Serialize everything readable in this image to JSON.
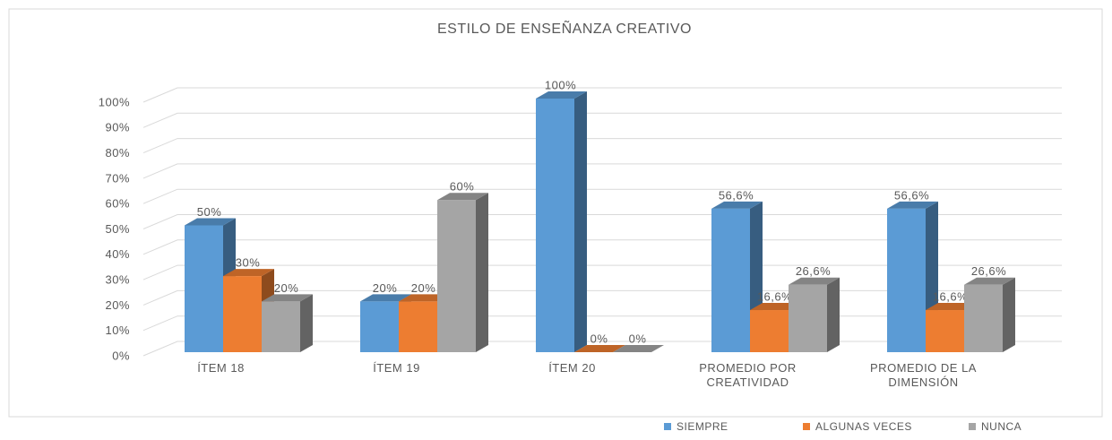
{
  "chart_data": {
    "type": "bar3d",
    "title": "ESTILO DE ENSEÑANZA CREATIVO",
    "categories": [
      "ÍTEM 18",
      "ÍTEM 19",
      "ÍTEM 20",
      "PROMEDIO POR CREATIVIDAD",
      "PROMEDIO DE LA DIMENSIÓN"
    ],
    "series": [
      {
        "name": "SIEMPRE",
        "color": "#5b9bd5",
        "values": [
          50,
          20,
          100,
          56.6,
          56.6
        ],
        "value_labels": [
          "50%",
          "20%",
          "100%",
          "56,6%",
          "56,6%"
        ]
      },
      {
        "name": "ALGUNAS VECES",
        "color": "#ed7d31",
        "values": [
          30,
          20,
          0,
          16.6,
          16.6
        ],
        "value_labels": [
          "30%",
          "20%",
          "0%",
          "16,6%",
          "16,6%"
        ]
      },
      {
        "name": "NUNCA",
        "color": "#a5a5a5",
        "values": [
          20,
          60,
          0,
          26.6,
          26.6
        ],
        "value_labels": [
          "20%",
          "60%",
          "0%",
          "26,6%",
          "26,6%"
        ]
      }
    ],
    "ylim": [
      0,
      100
    ],
    "yticks": [
      {
        "value": 0,
        "label": "0%"
      },
      {
        "value": 10,
        "label": "10%"
      },
      {
        "value": 20,
        "label": "20%"
      },
      {
        "value": 30,
        "label": "30%"
      },
      {
        "value": 40,
        "label": "40%"
      },
      {
        "value": 50,
        "label": "50%"
      },
      {
        "value": 60,
        "label": "60%"
      },
      {
        "value": 70,
        "label": "70%"
      },
      {
        "value": 80,
        "label": "80%"
      },
      {
        "value": 90,
        "label": "90%"
      },
      {
        "value": 100,
        "label": "100%"
      }
    ],
    "grid": true,
    "legend": "bottom"
  }
}
